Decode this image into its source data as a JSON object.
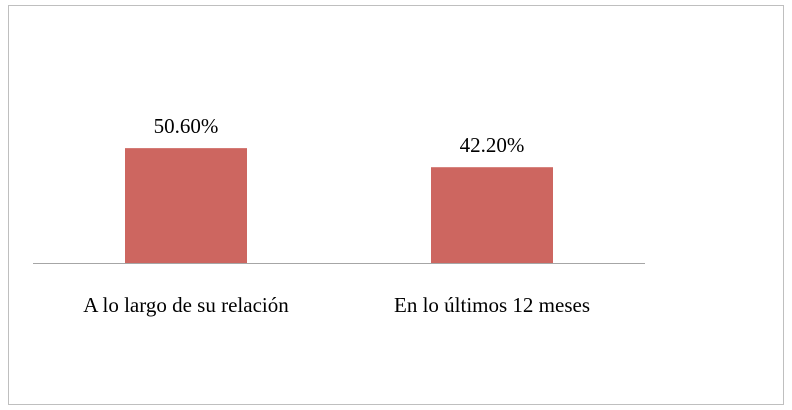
{
  "chart_data": {
    "type": "bar",
    "categories": [
      "A lo largo de su relación",
      "En lo últimos 12 meses"
    ],
    "values": [
      50.6,
      42.2
    ],
    "value_labels": [
      "50.60%",
      "42.20%"
    ],
    "color": "#cd6660"
  }
}
